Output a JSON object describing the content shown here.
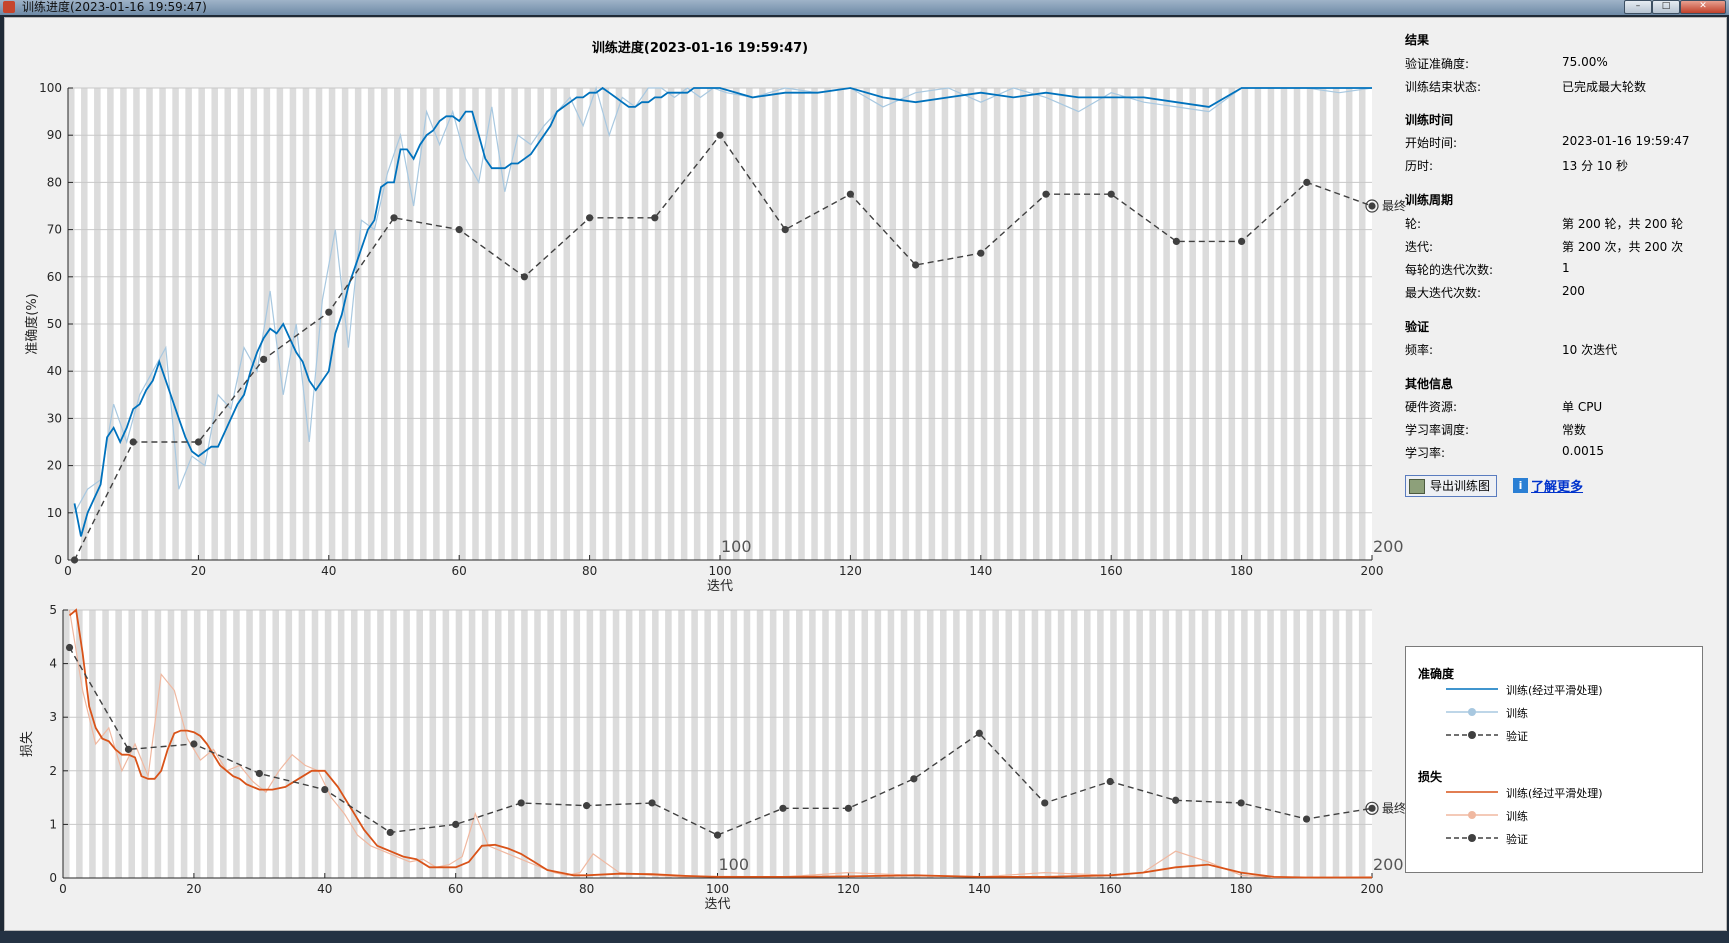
{
  "window": {
    "title": "训练进度(2023-01-16 19:59:47)",
    "buttons": [
      "–",
      "□",
      "✕"
    ]
  },
  "colors": {
    "accent": "#0072bd",
    "accent_light": "#a8c8e0",
    "loss": "#d95319",
    "loss_light": "#f0b8a0",
    "validation": "#404040"
  },
  "chart_data": [
    {
      "type": "line",
      "title": "训练进度(2023-01-16 19:59:47)",
      "xlabel": "迭代",
      "ylabel": "准确度(%)",
      "xlim": [
        0,
        200
      ],
      "ylim": [
        0,
        100
      ],
      "xticks": [
        0,
        20,
        40,
        60,
        80,
        100,
        120,
        140,
        160,
        180,
        200
      ],
      "yticks": [
        0,
        10,
        20,
        30,
        40,
        50,
        60,
        70,
        80,
        90,
        100
      ],
      "epoch_labels": [
        "100",
        "200"
      ],
      "grid": true,
      "series": [
        {
          "name": "训练(经过平滑处理)",
          "x": [
            1,
            2,
            3,
            4,
            5,
            6,
            7,
            8,
            9,
            10,
            11,
            12,
            13,
            14,
            15,
            16,
            17,
            18,
            19,
            20,
            21,
            22,
            23,
            24,
            25,
            26,
            27,
            28,
            29,
            30,
            31,
            32,
            33,
            34,
            35,
            36,
            37,
            38,
            39,
            40,
            41,
            42,
            43,
            44,
            45,
            46,
            47,
            48,
            49,
            50,
            51,
            52,
            53,
            54,
            55,
            56,
            57,
            58,
            59,
            60,
            61,
            62,
            63,
            64,
            65,
            66,
            67,
            68,
            69,
            70,
            71,
            72,
            73,
            74,
            75,
            76,
            77,
            78,
            79,
            80,
            81,
            82,
            83,
            84,
            85,
            86,
            87,
            88,
            89,
            90,
            91,
            92,
            93,
            94,
            95,
            96,
            97,
            98,
            99,
            100,
            105,
            110,
            115,
            120,
            125,
            130,
            135,
            140,
            145,
            150,
            155,
            160,
            165,
            170,
            175,
            180,
            185,
            190,
            195,
            200
          ],
          "y": [
            12,
            5,
            10,
            13,
            16,
            26,
            28,
            25,
            28,
            32,
            33,
            36,
            38,
            42,
            38,
            34,
            30,
            26,
            23,
            22,
            23,
            24,
            24,
            27,
            30,
            33,
            35,
            40,
            44,
            47,
            49,
            48,
            50,
            47,
            44,
            42,
            38,
            36,
            38,
            40,
            48,
            52,
            58,
            62,
            66,
            70,
            72,
            79,
            80,
            80,
            87,
            87,
            85,
            88,
            90,
            91,
            93,
            94,
            94,
            93,
            95,
            95,
            90,
            85,
            83,
            83,
            83,
            84,
            84,
            85,
            86,
            88,
            90,
            92,
            95,
            96,
            97,
            98,
            98,
            99,
            99,
            100,
            99,
            98,
            97,
            96,
            96,
            97,
            97,
            98,
            98,
            99,
            99,
            99,
            99,
            100,
            100,
            100,
            100,
            100,
            98,
            99,
            99,
            100,
            98,
            97,
            98,
            99,
            98,
            99,
            98,
            98,
            98,
            97,
            96,
            100,
            100,
            100,
            100,
            100
          ]
        },
        {
          "name": "训练",
          "x": [
            1,
            3,
            5,
            7,
            9,
            11,
            13,
            15,
            17,
            19,
            21,
            23,
            25,
            27,
            29,
            31,
            33,
            35,
            37,
            39,
            41,
            43,
            45,
            47,
            49,
            51,
            53,
            55,
            57,
            59,
            61,
            63,
            65,
            67,
            69,
            71,
            73,
            75,
            77,
            79,
            81,
            83,
            85,
            87,
            89,
            91,
            93,
            95,
            97,
            99,
            101,
            105,
            110,
            115,
            120,
            125,
            130,
            135,
            140,
            145,
            150,
            155,
            160,
            165,
            170,
            175,
            180,
            185,
            190,
            195,
            200
          ],
          "y": [
            10,
            15,
            17,
            33,
            25,
            35,
            40,
            45,
            15,
            22,
            20,
            35,
            32,
            45,
            40,
            57,
            35,
            50,
            25,
            55,
            70,
            45,
            72,
            70,
            82,
            90,
            75,
            95,
            88,
            95,
            85,
            80,
            96,
            78,
            90,
            88,
            92,
            95,
            98,
            92,
            100,
            90,
            98,
            96,
            100,
            100,
            98,
            100,
            98,
            100,
            99,
            98,
            100,
            99,
            100,
            96,
            99,
            100,
            97,
            100,
            98,
            95,
            99,
            97,
            96,
            95,
            100,
            100,
            100,
            99,
            100
          ]
        },
        {
          "name": "验证",
          "x": [
            1,
            10,
            20,
            30,
            40,
            50,
            60,
            70,
            80,
            90,
            100,
            110,
            120,
            130,
            140,
            150,
            160,
            170,
            180,
            190,
            200
          ],
          "y": [
            0,
            25,
            25,
            42.5,
            52.5,
            72.5,
            70,
            60,
            72.5,
            72.5,
            90,
            70,
            77.5,
            62.5,
            65,
            77.5,
            77.5,
            67.5,
            67.5,
            80,
            75
          ]
        }
      ],
      "final_label": "最终"
    },
    {
      "type": "line",
      "xlabel": "迭代",
      "ylabel": "损失",
      "xlim": [
        0,
        200
      ],
      "ylim": [
        0,
        5
      ],
      "xticks": [
        0,
        20,
        40,
        60,
        80,
        100,
        120,
        140,
        160,
        180,
        200
      ],
      "yticks": [
        0,
        1,
        2,
        3,
        4,
        5
      ],
      "epoch_labels": [
        "100",
        "200"
      ],
      "grid": true,
      "series": [
        {
          "name": "训练(经过平滑处理)",
          "x": [
            1,
            2,
            3,
            4,
            5,
            6,
            7,
            8,
            9,
            10,
            11,
            12,
            13,
            14,
            15,
            16,
            17,
            18,
            19,
            20,
            21,
            22,
            23,
            24,
            25,
            26,
            27,
            28,
            29,
            30,
            32,
            34,
            36,
            38,
            40,
            42,
            44,
            46,
            48,
            50,
            52,
            54,
            56,
            58,
            60,
            62,
            64,
            66,
            68,
            70,
            72,
            74,
            76,
            78,
            80,
            85,
            90,
            95,
            100,
            110,
            120,
            130,
            140,
            150,
            160,
            165,
            170,
            175,
            180,
            185,
            190,
            200
          ],
          "y": [
            4.9,
            5.0,
            4.2,
            3.2,
            2.8,
            2.6,
            2.55,
            2.4,
            2.3,
            2.3,
            2.25,
            1.9,
            1.85,
            1.85,
            2.0,
            2.4,
            2.7,
            2.75,
            2.75,
            2.72,
            2.65,
            2.5,
            2.3,
            2.1,
            2.0,
            1.9,
            1.85,
            1.75,
            1.7,
            1.65,
            1.65,
            1.7,
            1.85,
            2.0,
            2.0,
            1.7,
            1.3,
            0.9,
            0.6,
            0.5,
            0.4,
            0.35,
            0.2,
            0.2,
            0.2,
            0.3,
            0.6,
            0.62,
            0.55,
            0.45,
            0.3,
            0.15,
            0.1,
            0.05,
            0.05,
            0.08,
            0.07,
            0.04,
            0.02,
            0.02,
            0.03,
            0.05,
            0.02,
            0.02,
            0.05,
            0.1,
            0.2,
            0.25,
            0.1,
            0.02,
            0.01,
            0.01
          ]
        },
        {
          "name": "训练",
          "x": [
            1,
            3,
            5,
            7,
            9,
            11,
            13,
            15,
            17,
            19,
            21,
            23,
            25,
            27,
            29,
            31,
            33,
            35,
            37,
            39,
            41,
            43,
            45,
            47,
            49,
            51,
            53,
            55,
            57,
            59,
            61,
            63,
            65,
            67,
            69,
            71,
            73,
            75,
            77,
            79,
            81,
            85,
            90,
            95,
            100,
            110,
            120,
            130,
            140,
            150,
            160,
            165,
            170,
            175,
            180,
            185,
            190,
            200
          ],
          "y": [
            5.0,
            3.5,
            2.5,
            2.8,
            2.0,
            2.5,
            1.9,
            3.8,
            3.5,
            2.6,
            2.2,
            2.4,
            2.0,
            2.1,
            1.8,
            1.6,
            2.0,
            2.3,
            2.1,
            2.0,
            1.5,
            1.2,
            0.8,
            0.6,
            0.5,
            0.4,
            0.3,
            0.35,
            0.2,
            0.25,
            0.4,
            1.2,
            0.6,
            0.5,
            0.4,
            0.3,
            0.2,
            0.1,
            0.05,
            0.1,
            0.45,
            0.1,
            0.05,
            0.02,
            0.03,
            0.02,
            0.1,
            0.05,
            0.02,
            0.1,
            0.05,
            0.1,
            0.5,
            0.3,
            0.05,
            0.01,
            0.01,
            0.02
          ]
        },
        {
          "name": "验证",
          "x": [
            1,
            10,
            20,
            30,
            40,
            50,
            60,
            70,
            80,
            90,
            100,
            110,
            120,
            130,
            140,
            150,
            160,
            170,
            180,
            190,
            200
          ],
          "y": [
            4.3,
            2.4,
            2.5,
            1.95,
            1.65,
            0.85,
            1.0,
            1.4,
            1.35,
            1.4,
            0.8,
            1.3,
            1.3,
            1.85,
            2.7,
            1.4,
            1.8,
            1.45,
            1.4,
            1.1,
            1.3
          ]
        }
      ],
      "final_label": "最终"
    }
  ],
  "results": {
    "section": "结果",
    "rows": [
      {
        "label": "验证准确度:",
        "value": "75.00%"
      },
      {
        "label": "训练结束状态:",
        "value": "已完成最大轮数"
      }
    ]
  },
  "time": {
    "section": "训练时间",
    "rows": [
      {
        "label": "开始时间:",
        "value": "2023-01-16 19:59:47"
      },
      {
        "label": "历时:",
        "value": "13 分 10 秒"
      }
    ]
  },
  "cycle": {
    "section": "训练周期",
    "rows": [
      {
        "label": "轮:",
        "value": "第 200 轮，共 200 轮"
      },
      {
        "label": "迭代:",
        "value": "第 200 次，共 200 次"
      },
      {
        "label": "每轮的迭代次数:",
        "value": "1"
      },
      {
        "label": "最大迭代次数:",
        "value": "200"
      }
    ]
  },
  "validation": {
    "section": "验证",
    "rows": [
      {
        "label": "频率:",
        "value": "10 次迭代"
      }
    ]
  },
  "other": {
    "section": "其他信息",
    "rows": [
      {
        "label": "硬件资源:",
        "value": "单 CPU"
      },
      {
        "label": "学习率调度:",
        "value": "常数"
      },
      {
        "label": "学习率:",
        "value": "0.0015"
      }
    ]
  },
  "actions": {
    "export_label": "导出训练图",
    "learn_more": "了解更多",
    "export_icon": "plot-export-icon",
    "info_icon": "info-icon"
  },
  "legend": {
    "acc_title": "准确度",
    "acc_items": [
      "训练(经过平滑处理)",
      "训练",
      "验证"
    ],
    "loss_title": "损失",
    "loss_items": [
      "训练(经过平滑处理)",
      "训练",
      "验证"
    ]
  }
}
